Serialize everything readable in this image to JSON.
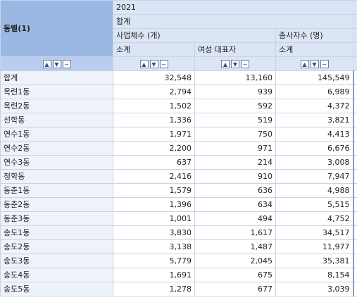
{
  "header": {
    "row_dimension": "동별(1)",
    "year": "2021",
    "total": "합계",
    "group1": "사업체수 (개)",
    "group2": "종사자수 (명)",
    "sub1": "소계",
    "sub2": "여성 대표자",
    "sub3": "소계"
  },
  "sort_buttons": {
    "up": "▲",
    "down": "▼",
    "remove": "−"
  },
  "rows": [
    {
      "name": "합계",
      "c1": "32,548",
      "c2": "13,160",
      "c3": "145,549"
    },
    {
      "name": "옥련1동",
      "c1": "2,794",
      "c2": "939",
      "c3": "6,989"
    },
    {
      "name": "옥련2동",
      "c1": "1,502",
      "c2": "592",
      "c3": "4,372"
    },
    {
      "name": "선학동",
      "c1": "1,336",
      "c2": "519",
      "c3": "3,821"
    },
    {
      "name": "연수1동",
      "c1": "1,971",
      "c2": "750",
      "c3": "4,413"
    },
    {
      "name": "연수2동",
      "c1": "2,200",
      "c2": "971",
      "c3": "6,676"
    },
    {
      "name": "연수3동",
      "c1": "637",
      "c2": "214",
      "c3": "3,008"
    },
    {
      "name": "청학동",
      "c1": "2,416",
      "c2": "910",
      "c3": "7,947"
    },
    {
      "name": "동춘1동",
      "c1": "1,579",
      "c2": "636",
      "c3": "4,988"
    },
    {
      "name": "동춘2동",
      "c1": "1,396",
      "c2": "634",
      "c3": "5,515"
    },
    {
      "name": "동춘3동",
      "c1": "1,001",
      "c2": "494",
      "c3": "4,752"
    },
    {
      "name": "송도1동",
      "c1": "3,830",
      "c2": "1,617",
      "c3": "34,517"
    },
    {
      "name": "송도2동",
      "c1": "3,138",
      "c2": "1,487",
      "c3": "11,977"
    },
    {
      "name": "송도3동",
      "c1": "5,779",
      "c2": "2,045",
      "c3": "35,381"
    },
    {
      "name": "송도4동",
      "c1": "1,691",
      "c2": "675",
      "c3": "8,154"
    },
    {
      "name": "송도5동",
      "c1": "1,278",
      "c2": "677",
      "c3": "3,039"
    }
  ]
}
